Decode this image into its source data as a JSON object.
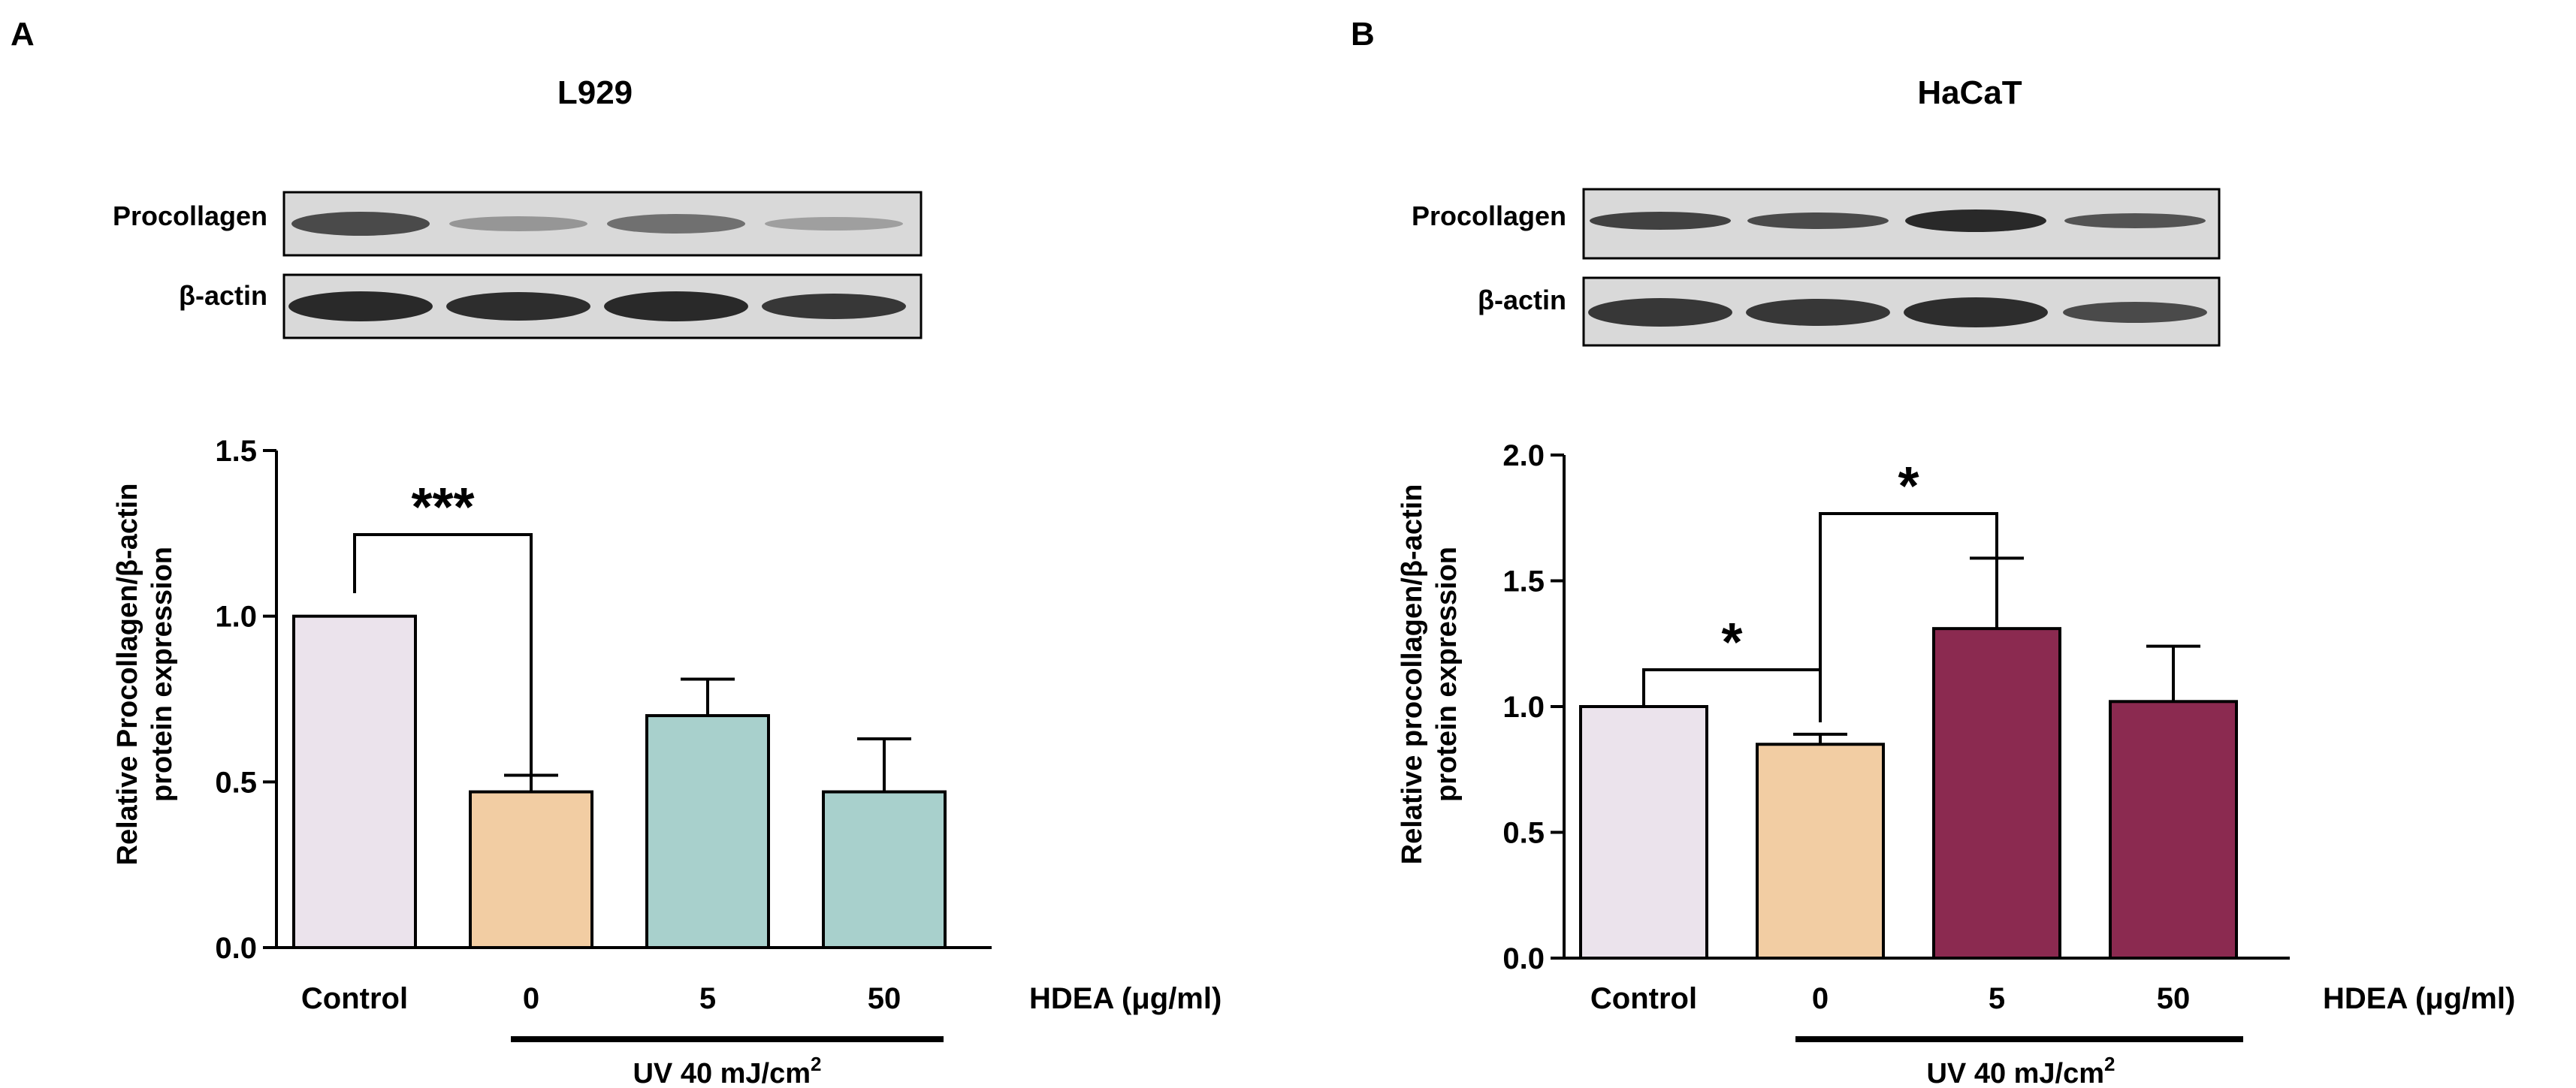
{
  "panels": [
    {
      "letter": "A",
      "cell_line": "L929",
      "blot_labels": [
        "Procollagen",
        "β-actin"
      ],
      "treatment_label": "HDEA (μg/ml)",
      "uv_label": "UV 40 mJ/cm",
      "uv_superscript": "2"
    },
    {
      "letter": "B",
      "cell_line": "HaCaT",
      "blot_labels": [
        "Procollagen",
        "β-actin"
      ],
      "treatment_label": "HDEA (μg/ml)",
      "uv_label": "UV 40 mJ/cm",
      "uv_superscript": "2"
    }
  ],
  "colors": {
    "control": "#ebe3ec",
    "uv_only": "#f2cda3",
    "hdea_l929": "#a8d0cc",
    "hdea_hacat": "#8b2a50"
  },
  "chart_data": [
    {
      "type": "bar",
      "title": "L929",
      "ylabel": "Relative Procollagen/β-actin protein expression",
      "xlabel": "HDEA (μg/ml)",
      "categories": [
        "Control",
        "0",
        "5",
        "50"
      ],
      "values": [
        1.0,
        0.47,
        0.7,
        0.47
      ],
      "errors": [
        0,
        0.05,
        0.11,
        0.16
      ],
      "ylim": [
        0,
        1.5
      ],
      "yticks": [
        "0.0",
        "0.5",
        "1.0",
        "1.5"
      ],
      "significance": [
        {
          "from": "Control",
          "to": "0",
          "label": "***"
        }
      ],
      "grid": false
    },
    {
      "type": "bar",
      "title": "HaCaT",
      "ylabel": "Relative procollagen/β-actin protein expression",
      "xlabel": "HDEA (μg/ml)",
      "categories": [
        "Control",
        "0",
        "5",
        "50"
      ],
      "values": [
        1.0,
        0.85,
        1.31,
        1.02
      ],
      "errors": [
        0,
        0.04,
        0.28,
        0.22
      ],
      "ylim": [
        0,
        2.0
      ],
      "yticks": [
        "0.0",
        "0.5",
        "1.0",
        "1.5",
        "2.0"
      ],
      "significance": [
        {
          "from": "Control",
          "to": "0",
          "label": "*"
        },
        {
          "from": "0",
          "to": "5",
          "label": "*"
        }
      ],
      "grid": false
    }
  ]
}
